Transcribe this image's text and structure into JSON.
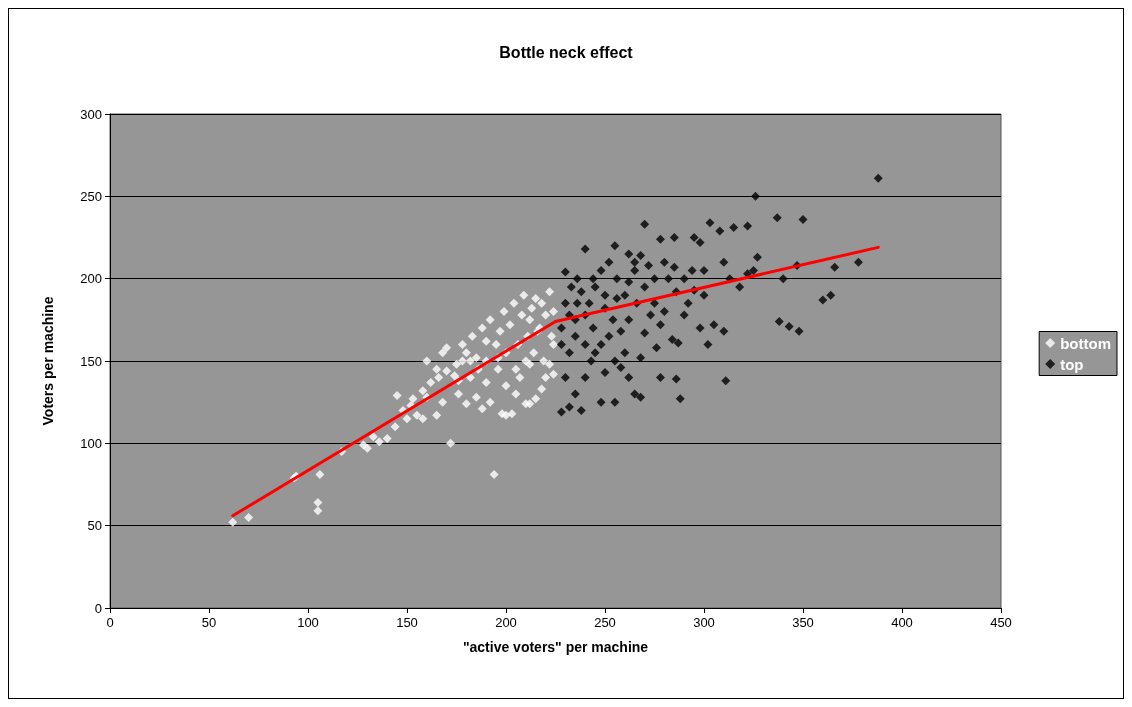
{
  "chart_data": {
    "type": "scatter",
    "title": "Bottle neck effect",
    "xlabel": "\"active voters\" per machine",
    "ylabel": "Voters per machine",
    "xlim": [
      0,
      450
    ],
    "xticks": [
      0,
      50,
      100,
      150,
      200,
      250,
      300,
      350,
      400,
      450
    ],
    "ylim": [
      0,
      300
    ],
    "yticks": [
      0,
      50,
      100,
      150,
      200,
      250,
      300
    ],
    "grid": "y",
    "legend": "right",
    "marker": "diamond",
    "series": [
      {
        "name": "bottom",
        "color": "#ffffff",
        "x": [
          62,
          70,
          93,
          94,
          106,
          105,
          105,
          117,
          128,
          130,
          133,
          136,
          140,
          144,
          145,
          148,
          150,
          152,
          155,
          158,
          160,
          162,
          165,
          168,
          170,
          172,
          174,
          176,
          178,
          180,
          182,
          185,
          188,
          190,
          192,
          194,
          196,
          198,
          200,
          203,
          205,
          207,
          210,
          212,
          215,
          218,
          220,
          222,
          224,
          160,
          165,
          168,
          170,
          175,
          178,
          180,
          183,
          185,
          188,
          190,
          192,
          195,
          197,
          199,
          200,
          202,
          204,
          206,
          208,
          209,
          211,
          213,
          215,
          217,
          218,
          220,
          222,
          223,
          224,
          210,
          214,
          219,
          205,
          186,
          200,
          216,
          212,
          196,
          190,
          182,
          176,
          166,
          153,
          158,
          224,
          212
        ],
        "values": [
          52,
          55,
          79,
          80,
          81,
          64,
          59,
          95,
          99,
          97,
          104,
          101,
          103,
          110,
          129,
          120,
          115,
          123,
          117,
          115,
          128,
          137,
          117,
          125,
          144,
          100,
          141,
          130,
          150,
          124,
          140,
          128,
          121,
          137,
          125,
          81,
          145,
          118,
          117,
          118,
          130,
          140,
          124,
          148,
          127,
          133,
          140,
          148,
          160,
          150,
          145,
          155,
          158,
          148,
          160,
          155,
          165,
          152,
          170,
          162,
          175,
          160,
          168,
          180,
          155,
          172,
          185,
          160,
          178,
          190,
          165,
          182,
          188,
          170,
          185,
          178,
          192,
          165,
          180,
          150,
          155,
          150,
          145,
          145,
          135,
          168,
          175,
          152,
          150,
          150,
          138,
          140,
          127,
          132,
          142,
          124
        ]
      },
      {
        "name": "top",
        "color": "#000000",
        "x": [
          388,
          326,
          337,
          350,
          303,
          270,
          308,
          315,
          322,
          278,
          285,
          295,
          298,
          240,
          255,
          262,
          268,
          265,
          272,
          285,
          300,
          310,
          327,
          325,
          347,
          366,
          378,
          322,
          318,
          313,
          340,
          360,
          364,
          338,
          343,
          348,
          311,
          310,
          305,
          292,
          295,
          290,
          280,
          275,
          284,
          287,
          276,
          270,
          268,
          260,
          255,
          250,
          258,
          262,
          243,
          240,
          235,
          232,
          228,
          238,
          248,
          255,
          265,
          278,
          286,
          288,
          268,
          230,
          232,
          235,
          228,
          230,
          233,
          236,
          230,
          238,
          242,
          245,
          248,
          252,
          256,
          260,
          262,
          266,
          270,
          273,
          278,
          282,
          286,
          290,
          294,
          240,
          244,
          250,
          254,
          258,
          262,
          232,
          236,
          248,
          252,
          245,
          240,
          235,
          265,
          280,
          275,
          298,
          300,
          302,
          256,
          244,
          250,
          228
        ],
        "values": [
          261,
          250,
          237,
          236,
          234,
          233,
          229,
          231,
          232,
          224,
          225,
          225,
          222,
          218,
          220,
          215,
          214,
          210,
          208,
          207,
          205,
          210,
          213,
          205,
          208,
          207,
          210,
          203,
          195,
          200,
          200,
          187,
          190,
          174,
          171,
          168,
          138,
          168,
          172,
          185,
          193,
          178,
          180,
          185,
          163,
          161,
          158,
          167,
          152,
          155,
          150,
          143,
          146,
          140,
          150,
          140,
          130,
          122,
          119,
          120,
          125,
          125,
          130,
          140,
          139,
          127,
          128,
          140,
          155,
          165,
          170,
          185,
          195,
          200,
          204,
          192,
          185,
          195,
          205,
          210,
          200,
          190,
          198,
          185,
          195,
          178,
          172,
          200,
          192,
          200,
          205,
          178,
          170,
          182,
          175,
          168,
          175,
          178,
          185,
          160,
          165,
          155,
          160,
          175,
          205,
          210,
          200,
          170,
          190,
          160,
          188,
          200,
          190,
          160
        ]
      },
      {
        "type": "line",
        "marker": "none",
        "color": "#ff0000",
        "x": [
          62,
          225,
          388
        ],
        "values": [
          56,
          174,
          219
        ]
      }
    ]
  }
}
